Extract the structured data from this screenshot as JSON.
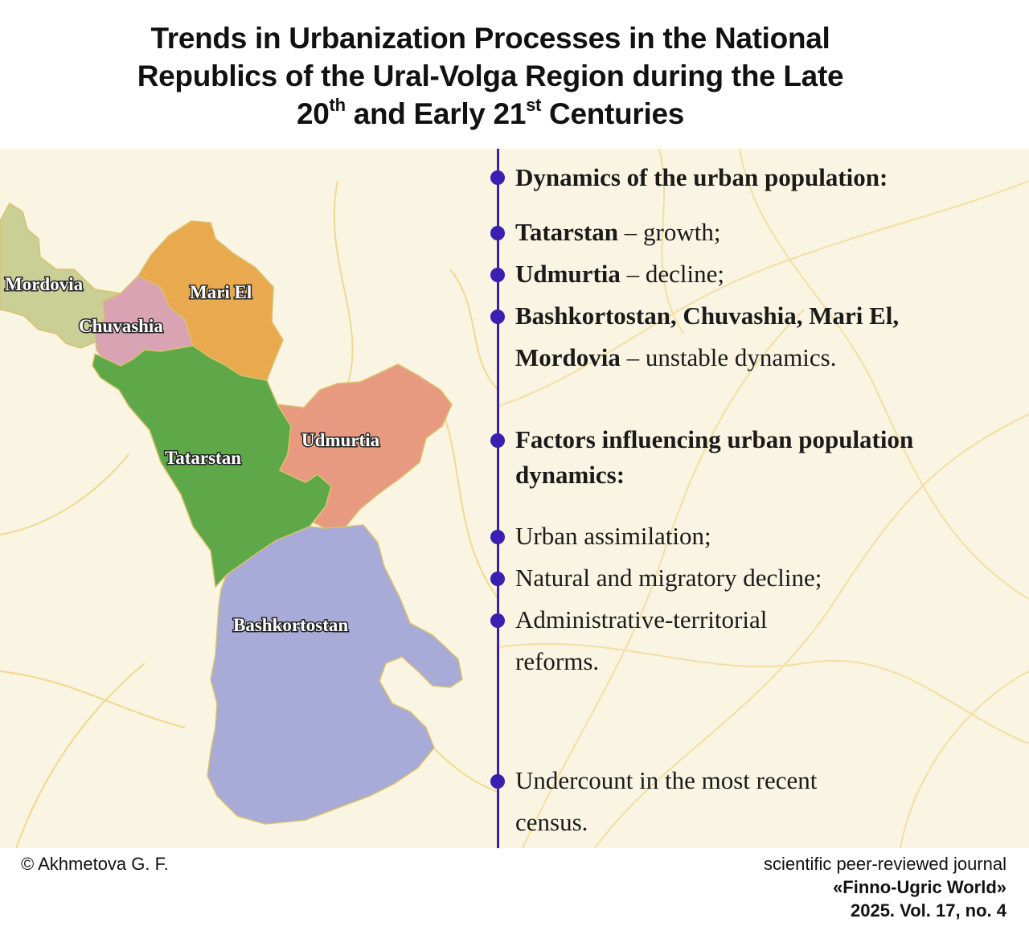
{
  "title": {
    "line1": "Trends in Urbanization Processes in the National",
    "line2": "Republics of the Ural-Volga Region during the Late",
    "line3_a": "20",
    "line3_sup1": "th",
    "line3_b": " and Early 21",
    "line3_sup2": "st",
    "line3_c": " Centuries"
  },
  "map": {
    "regions": [
      {
        "name": "Mordovia",
        "color": "#c9cf95"
      },
      {
        "name": "Chuvashia",
        "color": "#d9a3b3"
      },
      {
        "name": "Mari El",
        "color": "#e8a94f"
      },
      {
        "name": "Tatarstan",
        "color": "#5ea84a"
      },
      {
        "name": "Udmurtia",
        "color": "#e79a7f"
      },
      {
        "name": "Bashkortostan",
        "color": "#a8aad8"
      }
    ],
    "river_color": "#e8c85a",
    "background_color": "#faf4e2"
  },
  "divider_color": "#3a1fb0",
  "sections": {
    "dynamics_heading": "Dynamics of the urban population:",
    "dynamics_items": [
      {
        "name": "Tatarstan",
        "text": " – growth;"
      },
      {
        "name": "Udmurtia",
        "text": " – decline;"
      },
      {
        "name": "Bashkortostan, Chuvashia, Mari El,",
        "text": ""
      },
      {
        "name": "Mordovia",
        "text": " – unstable dynamics."
      }
    ],
    "factors_heading_line1": "Factors influencing urban population",
    "factors_heading_line2": "dynamics:",
    "factors_items": [
      "Urban assimilation;",
      "Natural and migratory decline;",
      "Administrative-territorial",
      "reforms."
    ],
    "extra_item_line1": "Undercount in the most recent",
    "extra_item_line2": "census."
  },
  "footer": {
    "author": "© Akhmetova G. F.",
    "journal_line1": "scientific peer-reviewed journal",
    "journal_line2": "«Finno-Ugric World»",
    "journal_line3": "2025. Vol. 17, no. 4"
  }
}
